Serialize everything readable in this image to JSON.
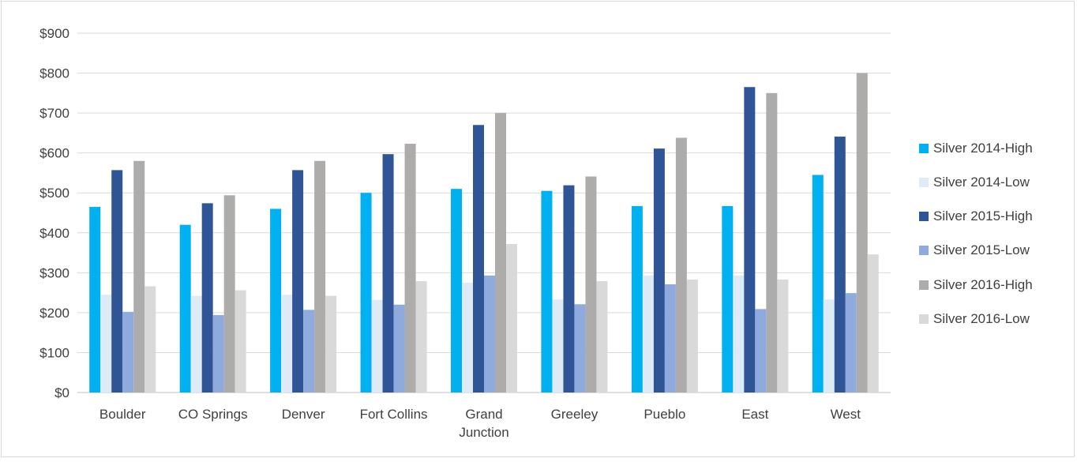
{
  "chart_data": {
    "type": "bar",
    "title": "",
    "xlabel": "",
    "ylabel": "",
    "ylim": [
      0,
      900
    ],
    "y_ticks": [
      "$0",
      "$100",
      "$200",
      "$300",
      "$400",
      "$500",
      "$600",
      "$700",
      "$800",
      "$900"
    ],
    "y_tick_values": [
      0,
      100,
      200,
      300,
      400,
      500,
      600,
      700,
      800,
      900
    ],
    "grid": true,
    "legend_position": "right",
    "categories": [
      "Boulder",
      "CO Springs",
      "Denver",
      "Fort Collins",
      "Grand Junction",
      "Greeley",
      "Pueblo",
      "East",
      "West"
    ],
    "series": [
      {
        "name": "Silver 2014-High",
        "color": "#00b0f0",
        "values": [
          465,
          420,
          460,
          500,
          510,
          505,
          467,
          467,
          545
        ]
      },
      {
        "name": "Silver 2014-Low",
        "color": "#deebf7",
        "values": [
          245,
          242,
          245,
          232,
          275,
          233,
          293,
          293,
          233
        ]
      },
      {
        "name": "Silver 2015-High",
        "color": "#2f5597",
        "values": [
          557,
          474,
          557,
          597,
          670,
          519,
          611,
          765,
          641
        ]
      },
      {
        "name": "Silver 2015-Low",
        "color": "#8faadc",
        "values": [
          202,
          194,
          207,
          220,
          293,
          221,
          271,
          209,
          249
        ]
      },
      {
        "name": "Silver 2016-High",
        "color": "#aeabab",
        "values": [
          580,
          494,
          580,
          623,
          700,
          541,
          638,
          750,
          800
        ]
      },
      {
        "name": "Silver 2016-Low",
        "color": "#d9d9d9",
        "values": [
          266,
          256,
          242,
          279,
          372,
          279,
          283,
          283,
          346
        ]
      }
    ]
  }
}
